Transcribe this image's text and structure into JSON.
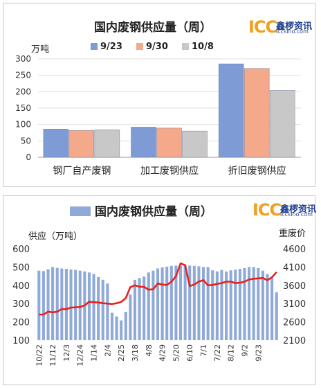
{
  "chart_data": [
    {
      "type": "bar",
      "title": "国内废钢供应量（周）",
      "ylabel": "万吨",
      "ylim": [
        0,
        300
      ],
      "yticks": [
        0,
        50,
        100,
        150,
        200,
        250,
        300
      ],
      "grid": true,
      "legend_position": "top",
      "categories": [
        "钢厂自产废钢",
        "加工废钢供应",
        "折旧废钢供应"
      ],
      "series": [
        {
          "name": "9/23",
          "color": "#7f9bd6",
          "values": [
            86,
            92,
            285
          ]
        },
        {
          "name": "9/30",
          "color": "#f4a98a",
          "values": [
            82,
            89,
            271
          ]
        },
        {
          "name": "10/8",
          "color": "#c8c8c8",
          "values": [
            84,
            80,
            204
          ]
        }
      ]
    },
    {
      "type": "bar",
      "title": "国内废钢供应量（周）",
      "ylabel": "供应（万吨）",
      "y2label": "重废价",
      "ylim": [
        100,
        600
      ],
      "yticks": [
        100,
        200,
        300,
        400,
        500,
        600
      ],
      "y2lim": [
        2100,
        4600
      ],
      "y2ticks": [
        2100,
        2600,
        3100,
        3600,
        4100,
        4600
      ],
      "legend_position": "top",
      "x_ticks": [
        "10/22",
        "11/12",
        "12/3",
        "12/24",
        "1/14",
        "2/4",
        "2/25",
        "3/18",
        "4/8",
        "4/29",
        "5/20",
        "6/10",
        "7/1",
        "7/22",
        "8/12",
        "9/2",
        "9/23"
      ],
      "series": [
        {
          "name": "国内废钢供应量（周）",
          "kind": "bar",
          "color": "#8fa9d9",
          "values": [
            480,
            478,
            488,
            500,
            495,
            492,
            490,
            486,
            484,
            480,
            476,
            470,
            462,
            445,
            430,
            410,
            250,
            230,
            208,
            255,
            350,
            430,
            440,
            448,
            470,
            480,
            492,
            498,
            502,
            506,
            508,
            505,
            510,
            508,
            506,
            504,
            500,
            500,
            482,
            476,
            484,
            476,
            482,
            486,
            490,
            494,
            500,
            500,
            494,
            480,
            462,
            440,
            362
          ]
        },
        {
          "kind": "line",
          "color": "#e8201c",
          "values": [
            2800,
            2800,
            2880,
            2860,
            2880,
            2950,
            2950,
            2990,
            3000,
            3010,
            3050,
            3150,
            3140,
            3130,
            3110,
            3100,
            3090,
            3110,
            3150,
            3250,
            3550,
            3600,
            3560,
            3560,
            3480,
            3490,
            3650,
            3620,
            3610,
            3700,
            3850,
            4200,
            4150,
            3580,
            3620,
            3700,
            3740,
            3600,
            3610,
            3640,
            3660,
            3700,
            3700,
            3660,
            3670,
            3700,
            3760,
            3780,
            3790,
            3800,
            3740,
            3820,
            3960
          ]
        }
      ]
    }
  ],
  "logo": {
    "icc": "ICC",
    "cn": "鑫椤资讯",
    "url": "iccsino.com"
  }
}
